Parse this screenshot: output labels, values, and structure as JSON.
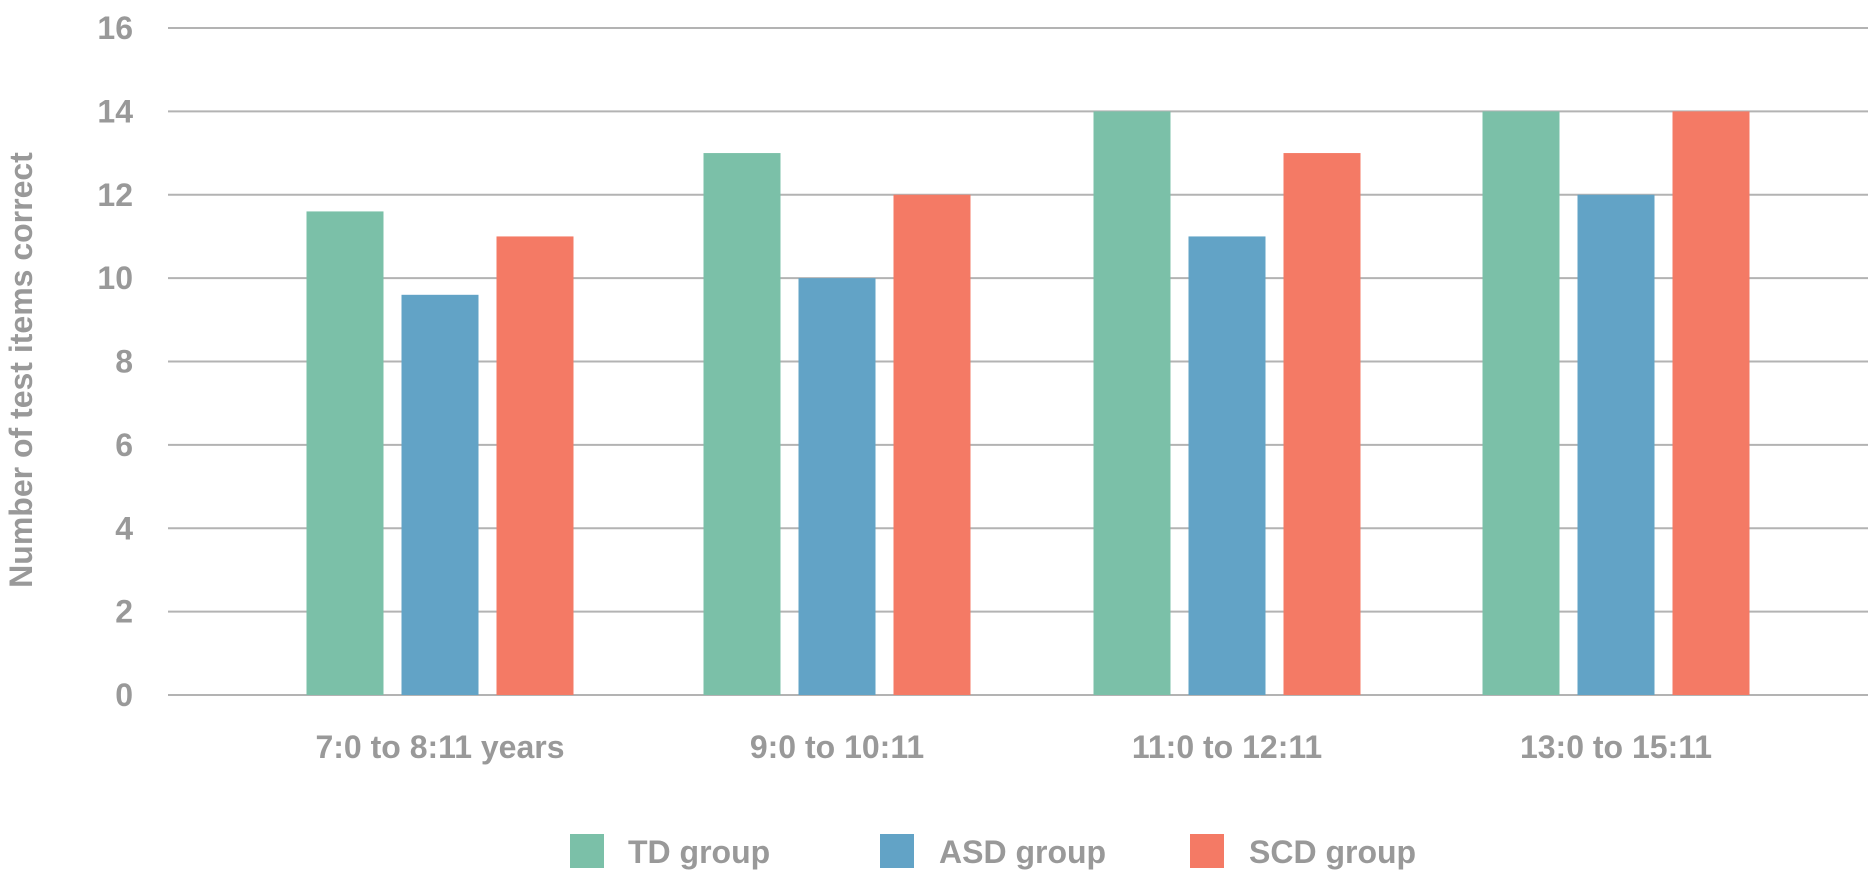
{
  "chart_data": {
    "type": "bar",
    "title": "",
    "xlabel": "",
    "ylabel": "Number of test items correct",
    "ylim": [
      0,
      16
    ],
    "yticks": [
      "0",
      "2",
      "4",
      "6",
      "8",
      "10",
      "12",
      "14",
      "16"
    ],
    "grid": true,
    "legend_position": "bottom",
    "categories": [
      "7:0 to 8:11 years",
      "9:0 to 10:11",
      "11:0 to 12:11",
      "13:0 to 15:11"
    ],
    "series": [
      {
        "name": "TD group",
        "color": "#7bc0a8",
        "values": [
          11.6,
          13.0,
          14.0,
          14.0
        ]
      },
      {
        "name": "ASD group",
        "color": "#62a3c6",
        "values": [
          9.6,
          10.0,
          11.0,
          12.0
        ]
      },
      {
        "name": "SCD group",
        "color": "#f47a65",
        "values": [
          11.0,
          12.0,
          13.0,
          14.0
        ]
      }
    ]
  }
}
